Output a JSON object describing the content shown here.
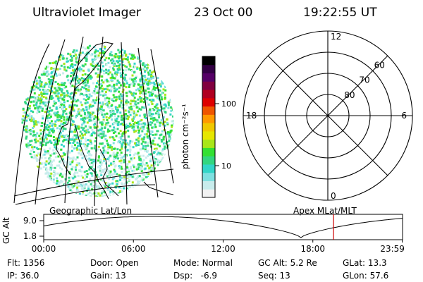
{
  "header": {
    "instrument": "Ultraviolet Imager",
    "date": "23 Oct 00",
    "time": "19:22:55 UT"
  },
  "colorbar": {
    "unit_label": "photon cm⁻²s⁻¹",
    "ticks": [
      {
        "label": "100",
        "value": 100
      },
      {
        "label": "10",
        "value": 10
      }
    ],
    "colors": [
      "#f2f2f2",
      "#c8ecec",
      "#7fe0e0",
      "#33d6c8",
      "#33d680",
      "#33e033",
      "#a8e61a",
      "#e6e600",
      "#f0c800",
      "#ff9900",
      "#ee5500",
      "#dd0000",
      "#b00020",
      "#800040",
      "#550066",
      "#330044",
      "#000000"
    ]
  },
  "polar_plot": {
    "mlt_labels": [
      {
        "label": "12",
        "angle": 0
      },
      {
        "label": "6",
        "angle": 90
      },
      {
        "label": "0",
        "angle": 180
      },
      {
        "label": "18",
        "angle": 270
      }
    ],
    "lat_labels": [
      {
        "label": "60",
        "lat": 60
      },
      {
        "label": "70",
        "lat": 70
      },
      {
        "label": "80",
        "lat": 80
      }
    ]
  },
  "map_labels": {
    "left": "Geographic Lat/Lon",
    "right": "Apex MLat/MLT"
  },
  "orbit_plot": {
    "ylabel": "GC Alt",
    "y_ticks": [
      {
        "label": "9.0",
        "value": 9.0
      },
      {
        "label": "1.8",
        "value": 1.8
      }
    ],
    "x_ticks": [
      {
        "label": "00:00",
        "hour": 0
      },
      {
        "label": "06:00",
        "hour": 6
      },
      {
        "label": "12:00",
        "hour": 12
      },
      {
        "label": "18:00",
        "hour": 18
      },
      {
        "label": "23:59",
        "hour": 23.983
      }
    ],
    "marker_hour": 19.382,
    "marker_color": "#cc0000"
  },
  "status": {
    "flt": {
      "label": "Flt:",
      "value": "1356"
    },
    "ip": {
      "label": "IP:",
      "value": "36.0"
    },
    "door": {
      "label": "Door:",
      "value": "Open"
    },
    "gain": {
      "label": "Gain:",
      "value": "13"
    },
    "mode": {
      "label": "Mode:",
      "value": "Normal"
    },
    "dsp": {
      "label": "Dsp:",
      "value": "-6.9"
    },
    "gc_alt": {
      "label": "GC Alt:",
      "value": "5.2 Re"
    },
    "seq": {
      "label": "Seq:",
      "value": "13"
    },
    "glat": {
      "label": "GLat:",
      "value": "13.3"
    },
    "glon": {
      "label": "GLon:",
      "value": "57.6"
    }
  }
}
